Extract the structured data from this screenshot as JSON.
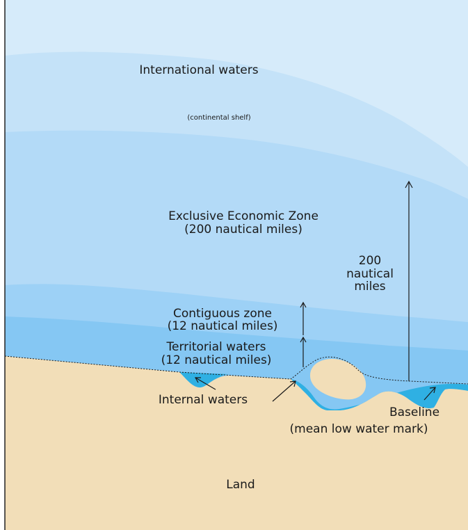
{
  "labels": {
    "international_waters": "International waters",
    "continental_shelf": "(continental shelf)",
    "eez_line1": "Exclusive Economic Zone",
    "eez_line2": "(200 nautical miles)",
    "nm200_line1": "200",
    "nm200_line2": "nautical",
    "nm200_line3": "miles",
    "contiguous_line1": "Contiguous zone",
    "contiguous_line2": "(12 nautical miles)",
    "territorial_line1": "Territorial waters",
    "territorial_line2": "(12 nautical miles)",
    "internal_waters": "Internal waters",
    "baseline_line1": "Baseline",
    "baseline_line2": "(mean low water mark)",
    "land": "Land"
  },
  "colors": {
    "international_waters": "#d6ebfa",
    "continental_shelf": "#c4e2f8",
    "eez": "#b3daf7",
    "contiguous_zone": "#9dd1f6",
    "territorial_waters": "#85c7f3",
    "internal_waters": "#2fb0e3",
    "land": "#f2deb8",
    "frame": "#222222"
  }
}
